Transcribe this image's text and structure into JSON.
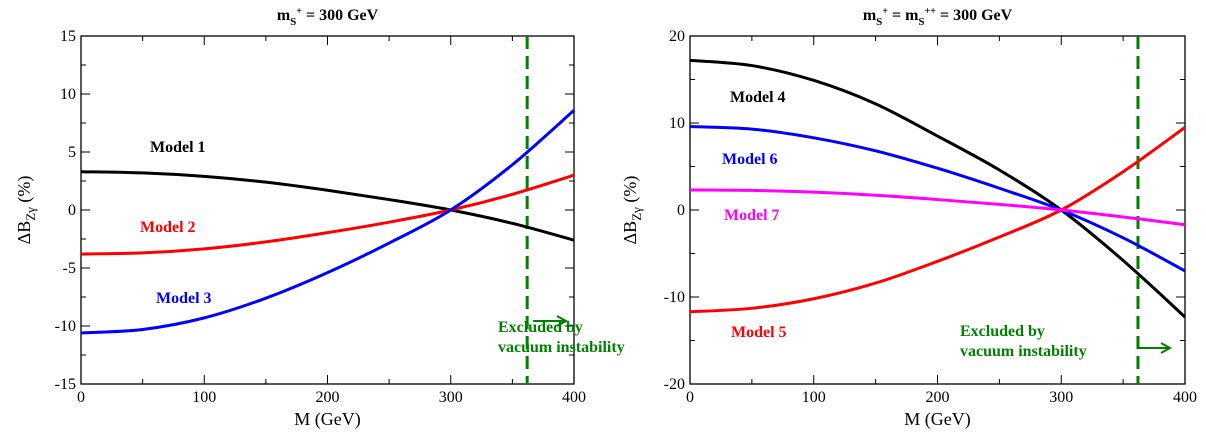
{
  "chart_data": [
    {
      "type": "line",
      "title": "m_{S⁺} = 300 GeV",
      "title_parts": {
        "base": "m",
        "sub": "S",
        "sup": "+",
        "rest": " = 300 GeV"
      },
      "xlabel": "M (GeV)",
      "ylabel": "ΔB_{Zγ} (%)",
      "ylabel_parts": {
        "pre": "ΔB",
        "sub": "Zγ",
        "post": " (%)"
      },
      "xlim": [
        0,
        400
      ],
      "ylim": [
        -15,
        15
      ],
      "xticks": [
        "0",
        "100",
        "200",
        "300",
        "400"
      ],
      "yticks": [
        "-15",
        "-10",
        "-5",
        "0",
        "5",
        "10",
        "15"
      ],
      "x": [
        0,
        50,
        100,
        150,
        200,
        250,
        300,
        350,
        400
      ],
      "series": [
        {
          "name": "Model 1",
          "color": "#000000",
          "values": [
            3.3,
            3.2,
            2.9,
            2.4,
            1.7,
            0.9,
            0.0,
            -1.15,
            -2.6
          ]
        },
        {
          "name": "Model 2",
          "color": "#ff0000",
          "values": [
            -3.8,
            -3.7,
            -3.35,
            -2.75,
            -1.95,
            -1.05,
            0.0,
            1.35,
            3.0
          ]
        },
        {
          "name": "Model 3",
          "color": "#0000ff",
          "values": [
            -10.6,
            -10.3,
            -9.3,
            -7.6,
            -5.4,
            -2.85,
            0.0,
            3.9,
            8.6
          ]
        }
      ],
      "annotations": [
        {
          "text": "Model 1",
          "color": "#000000"
        },
        {
          "text": "Model 2",
          "color": "#ff0000"
        },
        {
          "text": "Model 3",
          "color": "#0000ff"
        },
        {
          "text": "Excluded by",
          "color": "#008000"
        },
        {
          "text": "vacuum instability",
          "color": "#008000"
        },
        {
          "text": "⟶",
          "color": "#008000"
        }
      ],
      "exclusion_line": {
        "x": 362,
        "color": "#008000",
        "style": "dashed"
      }
    },
    {
      "type": "line",
      "title": "m_{S⁺} = m_{S⁺⁺} = 300 GeV",
      "title_parts": {
        "base": "m",
        "sub": "S",
        "sup": "+",
        "mid": " = m",
        "sub2": "S",
        "sup2": "++",
        "rest": " = 300 GeV"
      },
      "xlabel": "M (GeV)",
      "ylabel": "ΔB_{Zγ} (%)",
      "ylabel_parts": {
        "pre": "ΔB",
        "sub": "Zγ",
        "post": " (%)"
      },
      "xlim": [
        0,
        400
      ],
      "ylim": [
        -20,
        20
      ],
      "xticks": [
        "0",
        "100",
        "200",
        "300",
        "400"
      ],
      "yticks": [
        "-20",
        "-10",
        "0",
        "10",
        "20"
      ],
      "x": [
        0,
        50,
        100,
        150,
        200,
        250,
        300,
        350,
        400
      ],
      "series": [
        {
          "name": "Model 4",
          "color": "#000000",
          "values": [
            17.2,
            16.6,
            14.9,
            12.2,
            8.5,
            4.6,
            0.0,
            -5.8,
            -12.3
          ]
        },
        {
          "name": "Model 5",
          "color": "#ff0000",
          "values": [
            -11.7,
            -11.3,
            -10.2,
            -8.4,
            -5.9,
            -3.1,
            0.0,
            4.4,
            9.5
          ]
        },
        {
          "name": "Model 6",
          "color": "#0000ff",
          "values": [
            9.6,
            9.3,
            8.3,
            6.8,
            4.8,
            2.5,
            0.0,
            -3.2,
            -7.0
          ]
        },
        {
          "name": "Model 7",
          "color": "#ff00ff",
          "values": [
            2.3,
            2.25,
            2.05,
            1.7,
            1.2,
            0.65,
            0.0,
            -0.8,
            -1.7
          ]
        }
      ],
      "annotations": [
        {
          "text": "Model 4",
          "color": "#000000"
        },
        {
          "text": "Model 6",
          "color": "#0000ff"
        },
        {
          "text": "Model 7",
          "color": "#ff00ff"
        },
        {
          "text": "Model 5",
          "color": "#ff0000"
        },
        {
          "text": "Excluded by",
          "color": "#008000"
        },
        {
          "text": "vacuum instability",
          "color": "#008000"
        },
        {
          "text": "⟶",
          "color": "#008000"
        }
      ],
      "exclusion_line": {
        "x": 362,
        "color": "#008000",
        "style": "dashed"
      }
    }
  ]
}
